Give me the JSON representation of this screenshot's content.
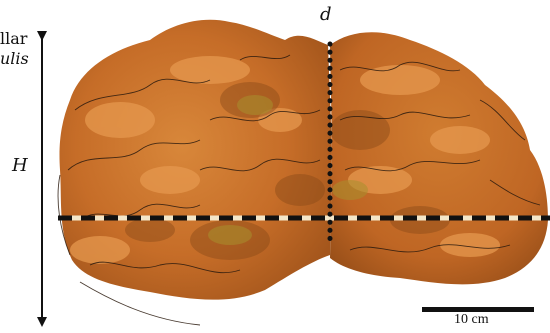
{
  "species_label": {
    "line1": "llar",
    "line2": "ulis"
  },
  "labels": {
    "height": "H",
    "diameter": "d",
    "scale": "10 cm"
  },
  "colors": {
    "specimen_base": "#c8702a",
    "specimen_light": "#e6964b",
    "specimen_dark": "#8a4a18",
    "specimen_yellow": "#a8902e",
    "outline": "#2a1a0e",
    "line_white": "#f3e6c8",
    "line_black": "#111111"
  }
}
